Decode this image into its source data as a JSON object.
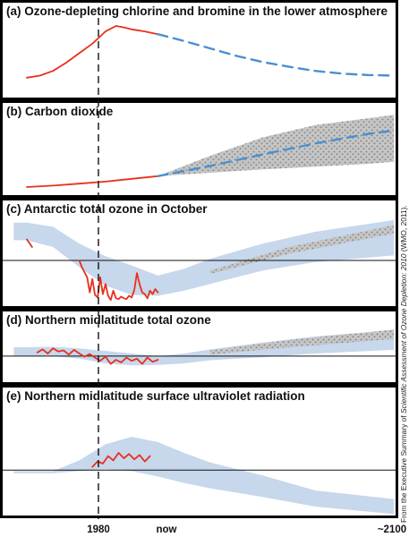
{
  "credit": {
    "prefix": "From the Executive Summary of ",
    "italic": "Scientific Assessment of Ozone Depletion: 2010",
    "suffix": " (WMO, 2011)."
  },
  "x_ticks": [
    "1980",
    "now",
    "~2100"
  ],
  "colors": {
    "observed": "#e8301c",
    "projected": "#4a90d0",
    "range_fill": "#c7d7ec",
    "stipple_fill": "#c6c6c6",
    "stipple_dots": "#8a8a8a"
  },
  "chart_data": [
    {
      "type": "line",
      "title": "(a) Ozone-depleting chlorine and bromine in the lower atmosphere",
      "xlabel": "",
      "ylabel": "",
      "relative_units": true,
      "ylim": [
        0,
        1
      ],
      "series": [
        {
          "name": "",
          "style": "observed",
          "x": [
            1960,
            1965,
            1970,
            1975,
            1980,
            1985,
            1990,
            1994,
            1997,
            2000,
            2005,
            2010
          ],
          "y": [
            0.2,
            0.23,
            0.3,
            0.42,
            0.56,
            0.7,
            0.88,
            0.96,
            0.94,
            0.91,
            0.88,
            0.84
          ]
        },
        {
          "name": "",
          "style": "projected",
          "x": [
            2010,
            2020,
            2030,
            2040,
            2050,
            2060,
            2070,
            2080,
            2090,
            2100
          ],
          "y": [
            0.84,
            0.74,
            0.63,
            0.52,
            0.43,
            0.36,
            0.3,
            0.26,
            0.24,
            0.23
          ]
        }
      ]
    },
    {
      "type": "line",
      "title": "(b) Carbon dioxide",
      "xlabel": "",
      "ylabel": "",
      "relative_units": true,
      "ylim": [
        0,
        1
      ],
      "series": [
        {
          "name": "",
          "style": "observed",
          "x": [
            1960,
            1970,
            1980,
            1990,
            2000,
            2010
          ],
          "y": [
            0.04,
            0.06,
            0.09,
            0.12,
            0.16,
            0.2
          ]
        },
        {
          "name": "",
          "style": "projected",
          "x": [
            2010,
            2030,
            2050,
            2070,
            2090,
            2100
          ],
          "y": [
            0.2,
            0.35,
            0.52,
            0.68,
            0.82,
            0.87
          ]
        }
      ],
      "projection_range": {
        "x": [
          2010,
          2030,
          2050,
          2070,
          2090,
          2100
        ],
        "low": [
          0.2,
          0.25,
          0.3,
          0.34,
          0.38,
          0.41
        ],
        "high": [
          0.2,
          0.5,
          0.77,
          0.95,
          1.05,
          1.1
        ]
      }
    },
    {
      "type": "area",
      "title": "(c) Antarctic total ozone in October",
      "xlabel": "",
      "ylabel": "",
      "relative_units": true,
      "ylim": [
        0,
        1
      ],
      "reference_line": 0.5,
      "series": [
        {
          "name": "",
          "style": "observed",
          "x": [
            1960,
            1962
          ],
          "y": [
            0.75,
            0.66
          ]
        },
        {
          "name": "",
          "style": "observed",
          "x": [
            1980,
            1981,
            1982,
            1983,
            1984,
            1985,
            1986,
            1987,
            1988,
            1989,
            1990,
            1991,
            1992,
            1993,
            1994,
            1995,
            1996,
            1997,
            1998,
            1999,
            2000,
            2001,
            2002,
            2003,
            2004,
            2005,
            2006,
            2007,
            2008,
            2009,
            2010
          ],
          "y": [
            0.5,
            0.42,
            0.36,
            0.3,
            0.12,
            0.28,
            0.09,
            0.06,
            0.3,
            0.1,
            0.22,
            0.08,
            0.03,
            0.14,
            0.05,
            0.04,
            0.07,
            0.05,
            0.04,
            0.08,
            0.06,
            0.15,
            0.35,
            0.22,
            0.12,
            0.1,
            0.05,
            0.14,
            0.1,
            0.16,
            0.12
          ]
        }
      ],
      "range": {
        "x": [
          1955,
          1960,
          1970,
          1980,
          1990,
          2000,
          2010,
          2020,
          2030,
          2050,
          2070,
          2100
        ],
        "low": [
          0.74,
          0.74,
          0.66,
          0.42,
          0.2,
          0.09,
          0.08,
          0.14,
          0.22,
          0.38,
          0.48,
          0.56
        ],
        "high": [
          0.95,
          0.95,
          0.9,
          0.7,
          0.55,
          0.44,
          0.32,
          0.4,
          0.52,
          0.7,
          0.84,
          0.98
        ]
      },
      "stipple_range": {
        "x": [
          2030,
          2060,
          2100
        ],
        "low": [
          0.34,
          0.58,
          0.82
        ],
        "high": [
          0.38,
          0.66,
          0.92
        ]
      }
    },
    {
      "type": "area",
      "title": "(d) Northern midlatitude total ozone",
      "xlabel": "",
      "ylabel": "",
      "relative_units": true,
      "ylim": [
        0,
        1
      ],
      "reference_line": 0.45,
      "series": [
        {
          "name": "",
          "style": "observed",
          "x": [
            1964,
            1966,
            1968,
            1970,
            1972,
            1974,
            1976,
            1978,
            1980,
            1982,
            1984,
            1986,
            1988,
            1990,
            1992,
            1994,
            1996,
            1998,
            2000,
            2002,
            2004,
            2006,
            2008,
            2010
          ],
          "y": [
            0.52,
            0.58,
            0.5,
            0.6,
            0.54,
            0.56,
            0.48,
            0.57,
            0.5,
            0.44,
            0.49,
            0.42,
            0.36,
            0.44,
            0.3,
            0.38,
            0.33,
            0.42,
            0.36,
            0.4,
            0.3,
            0.42,
            0.34,
            0.38
          ]
        }
      ],
      "range": {
        "x": [
          1955,
          1970,
          1980,
          1990,
          2000,
          2010,
          2020,
          2030,
          2050,
          2070,
          2100
        ],
        "low": [
          0.45,
          0.45,
          0.4,
          0.31,
          0.27,
          0.28,
          0.31,
          0.37,
          0.43,
          0.5,
          0.57
        ],
        "high": [
          0.62,
          0.63,
          0.6,
          0.55,
          0.5,
          0.45,
          0.5,
          0.58,
          0.71,
          0.83,
          0.95
        ]
      },
      "stipple_range": {
        "x": [
          2030,
          2060,
          2100
        ],
        "low": [
          0.48,
          0.62,
          0.78
        ],
        "high": [
          0.56,
          0.76,
          0.96
        ]
      }
    },
    {
      "type": "area",
      "title": "(e) Northern midlatitude surface ultraviolet radiation",
      "xlabel": "",
      "ylabel": "",
      "relative_units": true,
      "ylim": [
        0,
        1
      ],
      "reference_line": 0.39,
      "series": [
        {
          "name": "",
          "style": "observed",
          "x": [
            1985,
            1987,
            1989,
            1991,
            1993,
            1995,
            1997,
            1999,
            2001,
            2003,
            2005,
            2007
          ],
          "y": [
            0.42,
            0.47,
            0.45,
            0.52,
            0.48,
            0.55,
            0.5,
            0.54,
            0.49,
            0.53,
            0.47,
            0.52
          ]
        }
      ],
      "range": {
        "x": [
          1955,
          1970,
          1980,
          1990,
          2000,
          2010,
          2020,
          2030,
          2050,
          2070,
          2100
        ],
        "low": [
          0.36,
          0.36,
          0.38,
          0.4,
          0.38,
          0.33,
          0.27,
          0.22,
          0.14,
          0.05,
          -0.02
        ],
        "high": [
          0.38,
          0.38,
          0.48,
          0.63,
          0.7,
          0.65,
          0.55,
          0.46,
          0.34,
          0.2,
          0.12
        ]
      }
    }
  ]
}
